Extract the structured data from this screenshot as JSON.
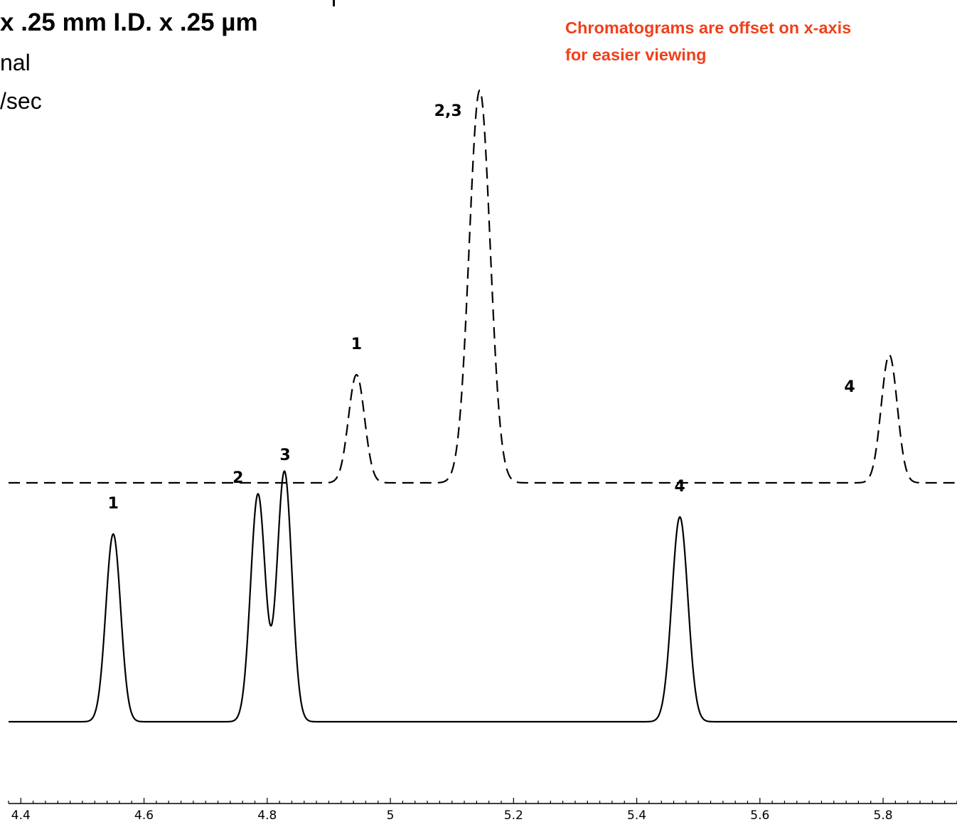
{
  "header": {
    "line1": "x .25 mm I.D. x .25 µm",
    "line2": "nal",
    "line3": "/sec"
  },
  "note": {
    "line1": "Chromatograms  are offset on x-axis",
    "line2": "for easier viewing",
    "color": "#f0401a"
  },
  "chart_data": {
    "type": "line",
    "title": "",
    "xlabel": "",
    "ylabel": "",
    "xlim": [
      4.38,
      5.92
    ],
    "x_ticks": [
      4.4,
      4.6,
      4.8,
      5,
      5.2,
      5.4,
      5.6,
      5.8
    ],
    "x_tick_labels": [
      "4.4",
      "4.6",
      "4.8",
      "5",
      "5.2",
      "5.4",
      "5.6",
      "5.8"
    ],
    "grid": false,
    "legend": "none",
    "series": [
      {
        "style": "solid",
        "baseline": 0,
        "peaks": [
          {
            "label": "1",
            "x": 4.55,
            "height": 0.66,
            "width": 0.012
          },
          {
            "label": "2",
            "x": 4.785,
            "height": 0.8,
            "width": 0.012
          },
          {
            "label": "3",
            "x": 4.828,
            "height": 0.88,
            "width": 0.012
          },
          {
            "label": "4",
            "x": 5.47,
            "height": 0.72,
            "width": 0.013
          }
        ]
      },
      {
        "style": "dashed",
        "baseline": 0.84,
        "peaks": [
          {
            "label": "1",
            "x": 4.945,
            "height": 0.38,
            "width": 0.013
          },
          {
            "label": "2,3",
            "x": 5.145,
            "height": 1.38,
            "width": 0.017
          },
          {
            "label": "4",
            "x": 5.81,
            "height": 0.45,
            "width": 0.013
          }
        ]
      }
    ]
  }
}
